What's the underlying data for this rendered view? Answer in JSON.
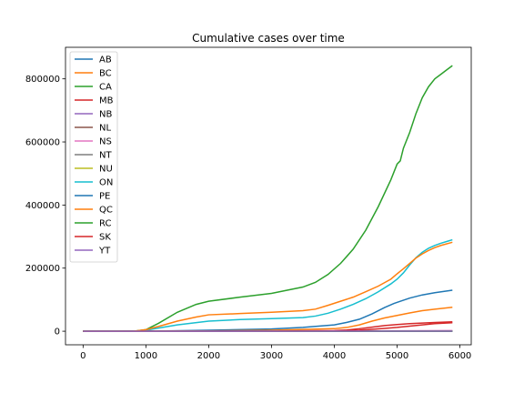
{
  "chart_data": {
    "type": "line",
    "title": "Cumulative cases over time",
    "xlabel": "",
    "ylabel": "",
    "xlim": [
      -280,
      6180
    ],
    "ylim": [
      -43000,
      900000
    ],
    "xticks": [
      0,
      1000,
      2000,
      3000,
      4000,
      5000,
      6000
    ],
    "yticks": [
      0,
      200000,
      400000,
      600000,
      800000
    ],
    "legend_position": "upper-left",
    "grid": false,
    "series": [
      {
        "name": "AB",
        "color": "#1f77b4",
        "x": [
          0,
          1200,
          2000,
          3000,
          3500,
          4000,
          4200,
          4400,
          4600,
          4800,
          4950,
          5050,
          5200,
          5400,
          5600,
          5880
        ],
        "y": [
          0,
          500,
          3000,
          7000,
          12000,
          20000,
          28000,
          38000,
          55000,
          75000,
          88000,
          95000,
          105000,
          115000,
          122000,
          130000
        ]
      },
      {
        "name": "BC",
        "color": "#ff7f0e",
        "x": [
          0,
          1200,
          2000,
          3000,
          4000,
          4200,
          4400,
          4600,
          4800,
          5000,
          5200,
          5400,
          5600,
          5880
        ],
        "y": [
          0,
          200,
          1000,
          3000,
          8000,
          12000,
          20000,
          32000,
          42000,
          50000,
          58000,
          65000,
          70000,
          76000
        ]
      },
      {
        "name": "CA",
        "color": "#2ca02c",
        "x": [
          0,
          800,
          1000,
          1200,
          1500,
          1800,
          2000,
          2500,
          3000,
          3500,
          3700,
          3900,
          4100,
          4300,
          4500,
          4700,
          4900,
          5000,
          5050,
          5100,
          5200,
          5300,
          5400,
          5500,
          5600,
          5700,
          5800,
          5880
        ],
        "y": [
          0,
          0,
          5000,
          25000,
          60000,
          85000,
          95000,
          108000,
          120000,
          140000,
          155000,
          180000,
          215000,
          260000,
          320000,
          395000,
          480000,
          530000,
          540000,
          580000,
          630000,
          690000,
          740000,
          775000,
          800000,
          815000,
          830000,
          842000
        ]
      },
      {
        "name": "MB",
        "color": "#d62728",
        "x": [
          0,
          1200,
          3000,
          4000,
          4200,
          4400,
          4600,
          4800,
          5000,
          5200,
          5400,
          5600,
          5880
        ],
        "y": [
          0,
          0,
          500,
          2000,
          4000,
          8000,
          13000,
          18000,
          21000,
          24000,
          26000,
          27500,
          30000
        ]
      },
      {
        "name": "NB",
        "color": "#9467bd",
        "x": [
          0,
          4000,
          5000,
          5880
        ],
        "y": [
          0,
          200,
          500,
          1500
        ]
      },
      {
        "name": "NL",
        "color": "#8c564b",
        "x": [
          0,
          4000,
          5000,
          5880
        ],
        "y": [
          0,
          300,
          800,
          1000
        ]
      },
      {
        "name": "NS",
        "color": "#e377c2",
        "x": [
          0,
          4000,
          5000,
          5880
        ],
        "y": [
          0,
          500,
          1500,
          2000
        ]
      },
      {
        "name": "NT",
        "color": "#7f7f7f",
        "x": [
          0,
          5880
        ],
        "y": [
          0,
          100
        ]
      },
      {
        "name": "NU",
        "color": "#bcbd22",
        "x": [
          0,
          5880
        ],
        "y": [
          0,
          300
        ]
      },
      {
        "name": "ON",
        "color": "#17becf",
        "x": [
          0,
          800,
          1000,
          1200,
          1500,
          2000,
          2500,
          3000,
          3500,
          3700,
          3900,
          4100,
          4300,
          4500,
          4700,
          4900,
          5000,
          5100,
          5200,
          5300,
          5400,
          5500,
          5600,
          5700,
          5800,
          5880
        ],
        "y": [
          0,
          0,
          3000,
          10000,
          20000,
          32000,
          37000,
          40000,
          43000,
          48000,
          57000,
          70000,
          85000,
          103000,
          125000,
          150000,
          165000,
          185000,
          210000,
          233000,
          250000,
          263000,
          272000,
          279000,
          285000,
          290000
        ]
      },
      {
        "name": "PE",
        "color": "#1f77b4",
        "x": [
          0,
          5880
        ],
        "y": [
          0,
          0
        ]
      },
      {
        "name": "QC",
        "color": "#ff7f0e",
        "x": [
          0,
          800,
          1000,
          1200,
          1500,
          1800,
          2000,
          2500,
          3000,
          3500,
          3700,
          3900,
          4100,
          4300,
          4500,
          4700,
          4900,
          5000,
          5050,
          5100,
          5200,
          5300,
          5400,
          5500,
          5600,
          5700,
          5880
        ],
        "y": [
          0,
          0,
          5000,
          15000,
          32000,
          45000,
          52000,
          56000,
          60000,
          65000,
          70000,
          82000,
          95000,
          108000,
          125000,
          143000,
          165000,
          182000,
          190000,
          198000,
          215000,
          232000,
          245000,
          256000,
          265000,
          272000,
          282000
        ]
      },
      {
        "name": "RC",
        "color": "#2ca02c",
        "x": [
          0,
          5880
        ],
        "y": [
          0,
          0
        ]
      },
      {
        "name": "SK",
        "color": "#d62728",
        "x": [
          0,
          3000,
          4000,
          4200,
          4400,
          4600,
          4800,
          5000,
          5200,
          5400,
          5600,
          5880
        ],
        "y": [
          0,
          200,
          1000,
          2000,
          3500,
          6000,
          9000,
          12000,
          16000,
          20000,
          24000,
          27000
        ]
      },
      {
        "name": "YT",
        "color": "#9467bd",
        "x": [
          0,
          5880
        ],
        "y": [
          0,
          100
        ]
      }
    ]
  }
}
